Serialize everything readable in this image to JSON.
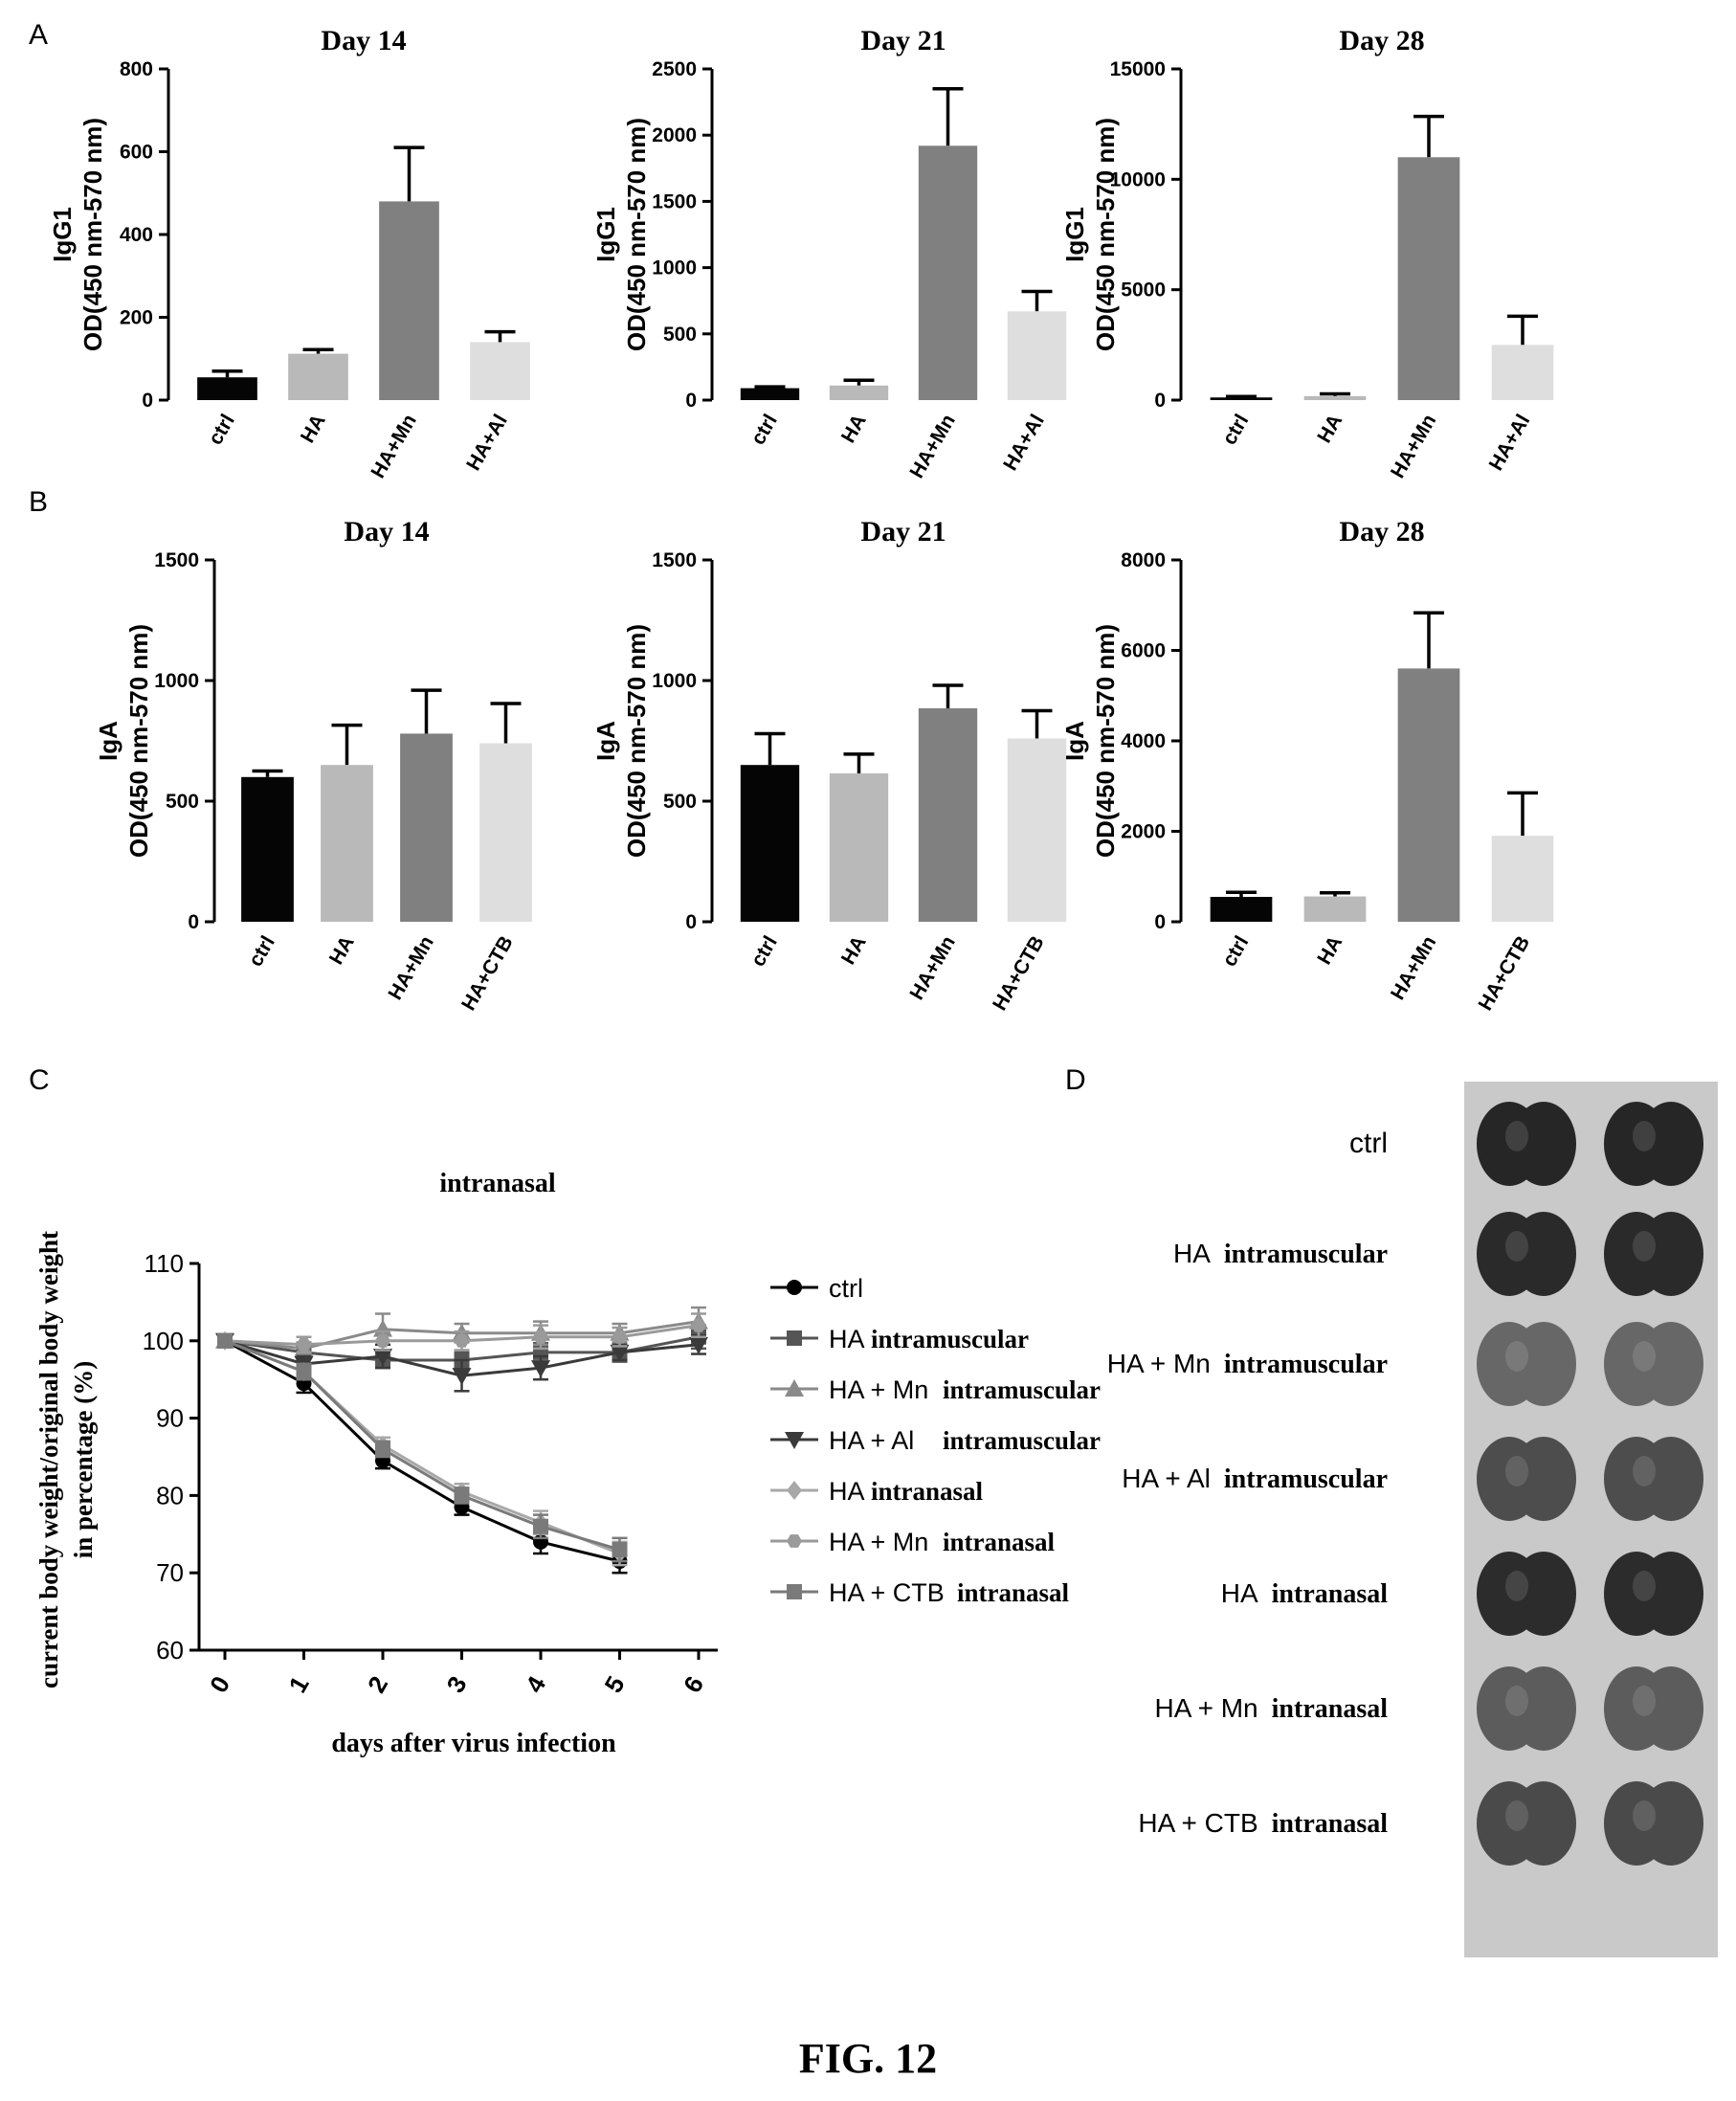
{
  "panels": {
    "a": "A",
    "b": "B",
    "c": "C",
    "d": "D"
  },
  "figure_caption": "FIG. 12",
  "chart_data": [
    {
      "id": "A1",
      "type": "bar",
      "title": "Day 14",
      "ylabel": [
        "IgG1",
        "OD(450 nm-570 nm)"
      ],
      "categories": [
        "ctrl",
        "HA",
        "HA+Mn",
        "HA+Al"
      ],
      "values": [
        55,
        112,
        480,
        140
      ],
      "errors": [
        15,
        10,
        130,
        25
      ],
      "ylim": [
        0,
        800
      ],
      "yticks": [
        0,
        200,
        400,
        600,
        800
      ],
      "colors": [
        "#050505",
        "#b9b9b9",
        "#808080",
        "#dedede"
      ]
    },
    {
      "id": "A2",
      "type": "bar",
      "title": "Day 21",
      "ylabel": [
        "IgG1",
        "OD(450 nm-570 nm)"
      ],
      "categories": [
        "ctrl",
        "HA",
        "HA+Mn",
        "HA+Al"
      ],
      "values": [
        90,
        110,
        1920,
        670
      ],
      "errors": [
        10,
        40,
        430,
        150
      ],
      "ylim": [
        0,
        2500
      ],
      "yticks": [
        0,
        500,
        1000,
        1500,
        2000,
        2500
      ],
      "colors": [
        "#050505",
        "#b9b9b9",
        "#808080",
        "#dedede"
      ]
    },
    {
      "id": "A3",
      "type": "bar",
      "title": "Day 28",
      "ylabel": [
        "IgG1",
        "OD(450 nm-570 nm)"
      ],
      "categories": [
        "ctrl",
        "HA",
        "HA+Mn",
        "HA+Al"
      ],
      "values": [
        120,
        180,
        11000,
        2500
      ],
      "errors": [
        40,
        100,
        1850,
        1300
      ],
      "ylim": [
        0,
        15000
      ],
      "yticks": [
        0,
        5000,
        10000,
        15000
      ],
      "colors": [
        "#050505",
        "#b9b9b9",
        "#808080",
        "#dedede"
      ]
    },
    {
      "id": "B1",
      "type": "bar",
      "title": "Day 14",
      "ylabel": [
        "IgA",
        "OD(450 nm-570 nm)"
      ],
      "categories": [
        "ctrl",
        "HA",
        "HA+Mn",
        "HA+CTB"
      ],
      "values": [
        600,
        650,
        780,
        740
      ],
      "errors": [
        25,
        165,
        180,
        165
      ],
      "ylim": [
        0,
        1500
      ],
      "yticks": [
        0,
        500,
        1000,
        1500
      ],
      "colors": [
        "#050505",
        "#b9b9b9",
        "#808080",
        "#dedede"
      ]
    },
    {
      "id": "B2",
      "type": "bar",
      "title": "Day 21",
      "ylabel": [
        "IgA",
        "OD(450 nm-570 nm)"
      ],
      "categories": [
        "ctrl",
        "HA",
        "HA+Mn",
        "HA+CTB"
      ],
      "values": [
        650,
        615,
        885,
        760
      ],
      "errors": [
        130,
        80,
        95,
        115
      ],
      "ylim": [
        0,
        1500
      ],
      "yticks": [
        0,
        500,
        1000,
        1500
      ],
      "colors": [
        "#050505",
        "#b9b9b9",
        "#808080",
        "#dedede"
      ]
    },
    {
      "id": "B3",
      "type": "bar",
      "title": "Day 28",
      "ylabel": [
        "IgA",
        "OD(450 nm-570 nm)"
      ],
      "categories": [
        "ctrl",
        "HA",
        "HA+Mn",
        "HA+CTB"
      ],
      "values": [
        550,
        560,
        5600,
        1900
      ],
      "errors": [
        100,
        80,
        1230,
        950
      ],
      "ylim": [
        0,
        8000
      ],
      "yticks": [
        0,
        2000,
        4000,
        6000,
        8000
      ],
      "colors": [
        "#050505",
        "#b9b9b9",
        "#808080",
        "#dedede"
      ]
    },
    {
      "id": "C",
      "type": "line",
      "title": "intranasal",
      "xlabel": "days after virus infection",
      "ylabel": [
        "current body weight/original body weight",
        "in percentage (%)"
      ],
      "x": [
        0,
        1,
        2,
        3,
        4,
        5,
        6
      ],
      "ylim": [
        60,
        110
      ],
      "yticks": [
        60,
        70,
        80,
        90,
        100,
        110
      ],
      "series": [
        {
          "name": "ctrl",
          "legend_parts": [
            "ctrl",
            ""
          ],
          "marker": "circle",
          "color": "#000000",
          "values": [
            100,
            94.5,
            84.5,
            78.5,
            74,
            71.5,
            null
          ],
          "errors": [
            0,
            1.2,
            1.0,
            1.0,
            1.5,
            1.5,
            0
          ]
        },
        {
          "name": "HA intramuscular",
          "legend_parts": [
            "HA",
            "intramuscular"
          ],
          "marker": "square",
          "color": "#555555",
          "values": [
            100,
            98.5,
            97.5,
            97.5,
            98.5,
            98.5,
            100.5
          ],
          "errors": [
            0,
            0.8,
            1.0,
            1.0,
            1.2,
            1.2,
            1.5
          ]
        },
        {
          "name": "HA + Mn intramuscular",
          "legend_parts": [
            "HA + Mn",
            "intramuscular"
          ],
          "marker": "triangle-up",
          "color": "#8a8a8a",
          "values": [
            100,
            99,
            101.5,
            101,
            101,
            101,
            102.5
          ],
          "errors": [
            0,
            0.8,
            2.0,
            1.2,
            1.5,
            1.2,
            1.8
          ]
        },
        {
          "name": "HA + Al intramuscular",
          "legend_parts": [
            "HA + Al",
            "intramuscular"
          ],
          "marker": "triangle-down",
          "color": "#3a3a3a",
          "values": [
            100,
            97,
            98,
            95.5,
            96.5,
            98.5,
            99.5
          ],
          "errors": [
            0,
            1.0,
            1.5,
            2.0,
            1.5,
            1.0,
            1.2
          ]
        },
        {
          "name": "HA intranasal",
          "legend_parts": [
            "HA",
            "intranasal"
          ],
          "marker": "diamond",
          "color": "#a8a8a8",
          "values": [
            100,
            96,
            86.5,
            80.5,
            76.5,
            72.5,
            null
          ],
          "errors": [
            0,
            1.0,
            1.0,
            1.0,
            1.5,
            1.5,
            0
          ]
        },
        {
          "name": "HA + Mn intranasal",
          "legend_parts": [
            "HA + Mn",
            "intranasal"
          ],
          "marker": "hexagon",
          "color": "#9a9a9a",
          "values": [
            100,
            99.5,
            100,
            100,
            100.5,
            100.5,
            102
          ],
          "errors": [
            0,
            1.0,
            1.2,
            1.2,
            1.5,
            1.2,
            1.5
          ]
        },
        {
          "name": "HA + CTB intranasal",
          "legend_parts": [
            "HA + CTB",
            "intranasal"
          ],
          "marker": "square",
          "color": "#7a7a7a",
          "values": [
            100,
            96,
            86,
            80,
            76,
            73,
            null
          ],
          "errors": [
            0,
            1.0,
            1.0,
            1.0,
            1.5,
            1.5,
            0
          ]
        }
      ]
    }
  ],
  "panel_d": {
    "labels": [
      [
        "",
        "ctrl"
      ],
      [
        "HA",
        "intramuscular"
      ],
      [
        "HA + Mn",
        "intramuscular"
      ],
      [
        "HA + Al",
        "intramuscular"
      ],
      [
        "HA",
        "intranasal"
      ],
      [
        "HA + Mn",
        "intranasal"
      ],
      [
        "HA + CTB",
        "intranasal"
      ]
    ],
    "organ_shades": [
      "#262626",
      "#2a2a2a",
      "#676767",
      "#4d4d4d",
      "#2c2c2c",
      "#5c5c5c",
      "#4a4a4a"
    ]
  }
}
